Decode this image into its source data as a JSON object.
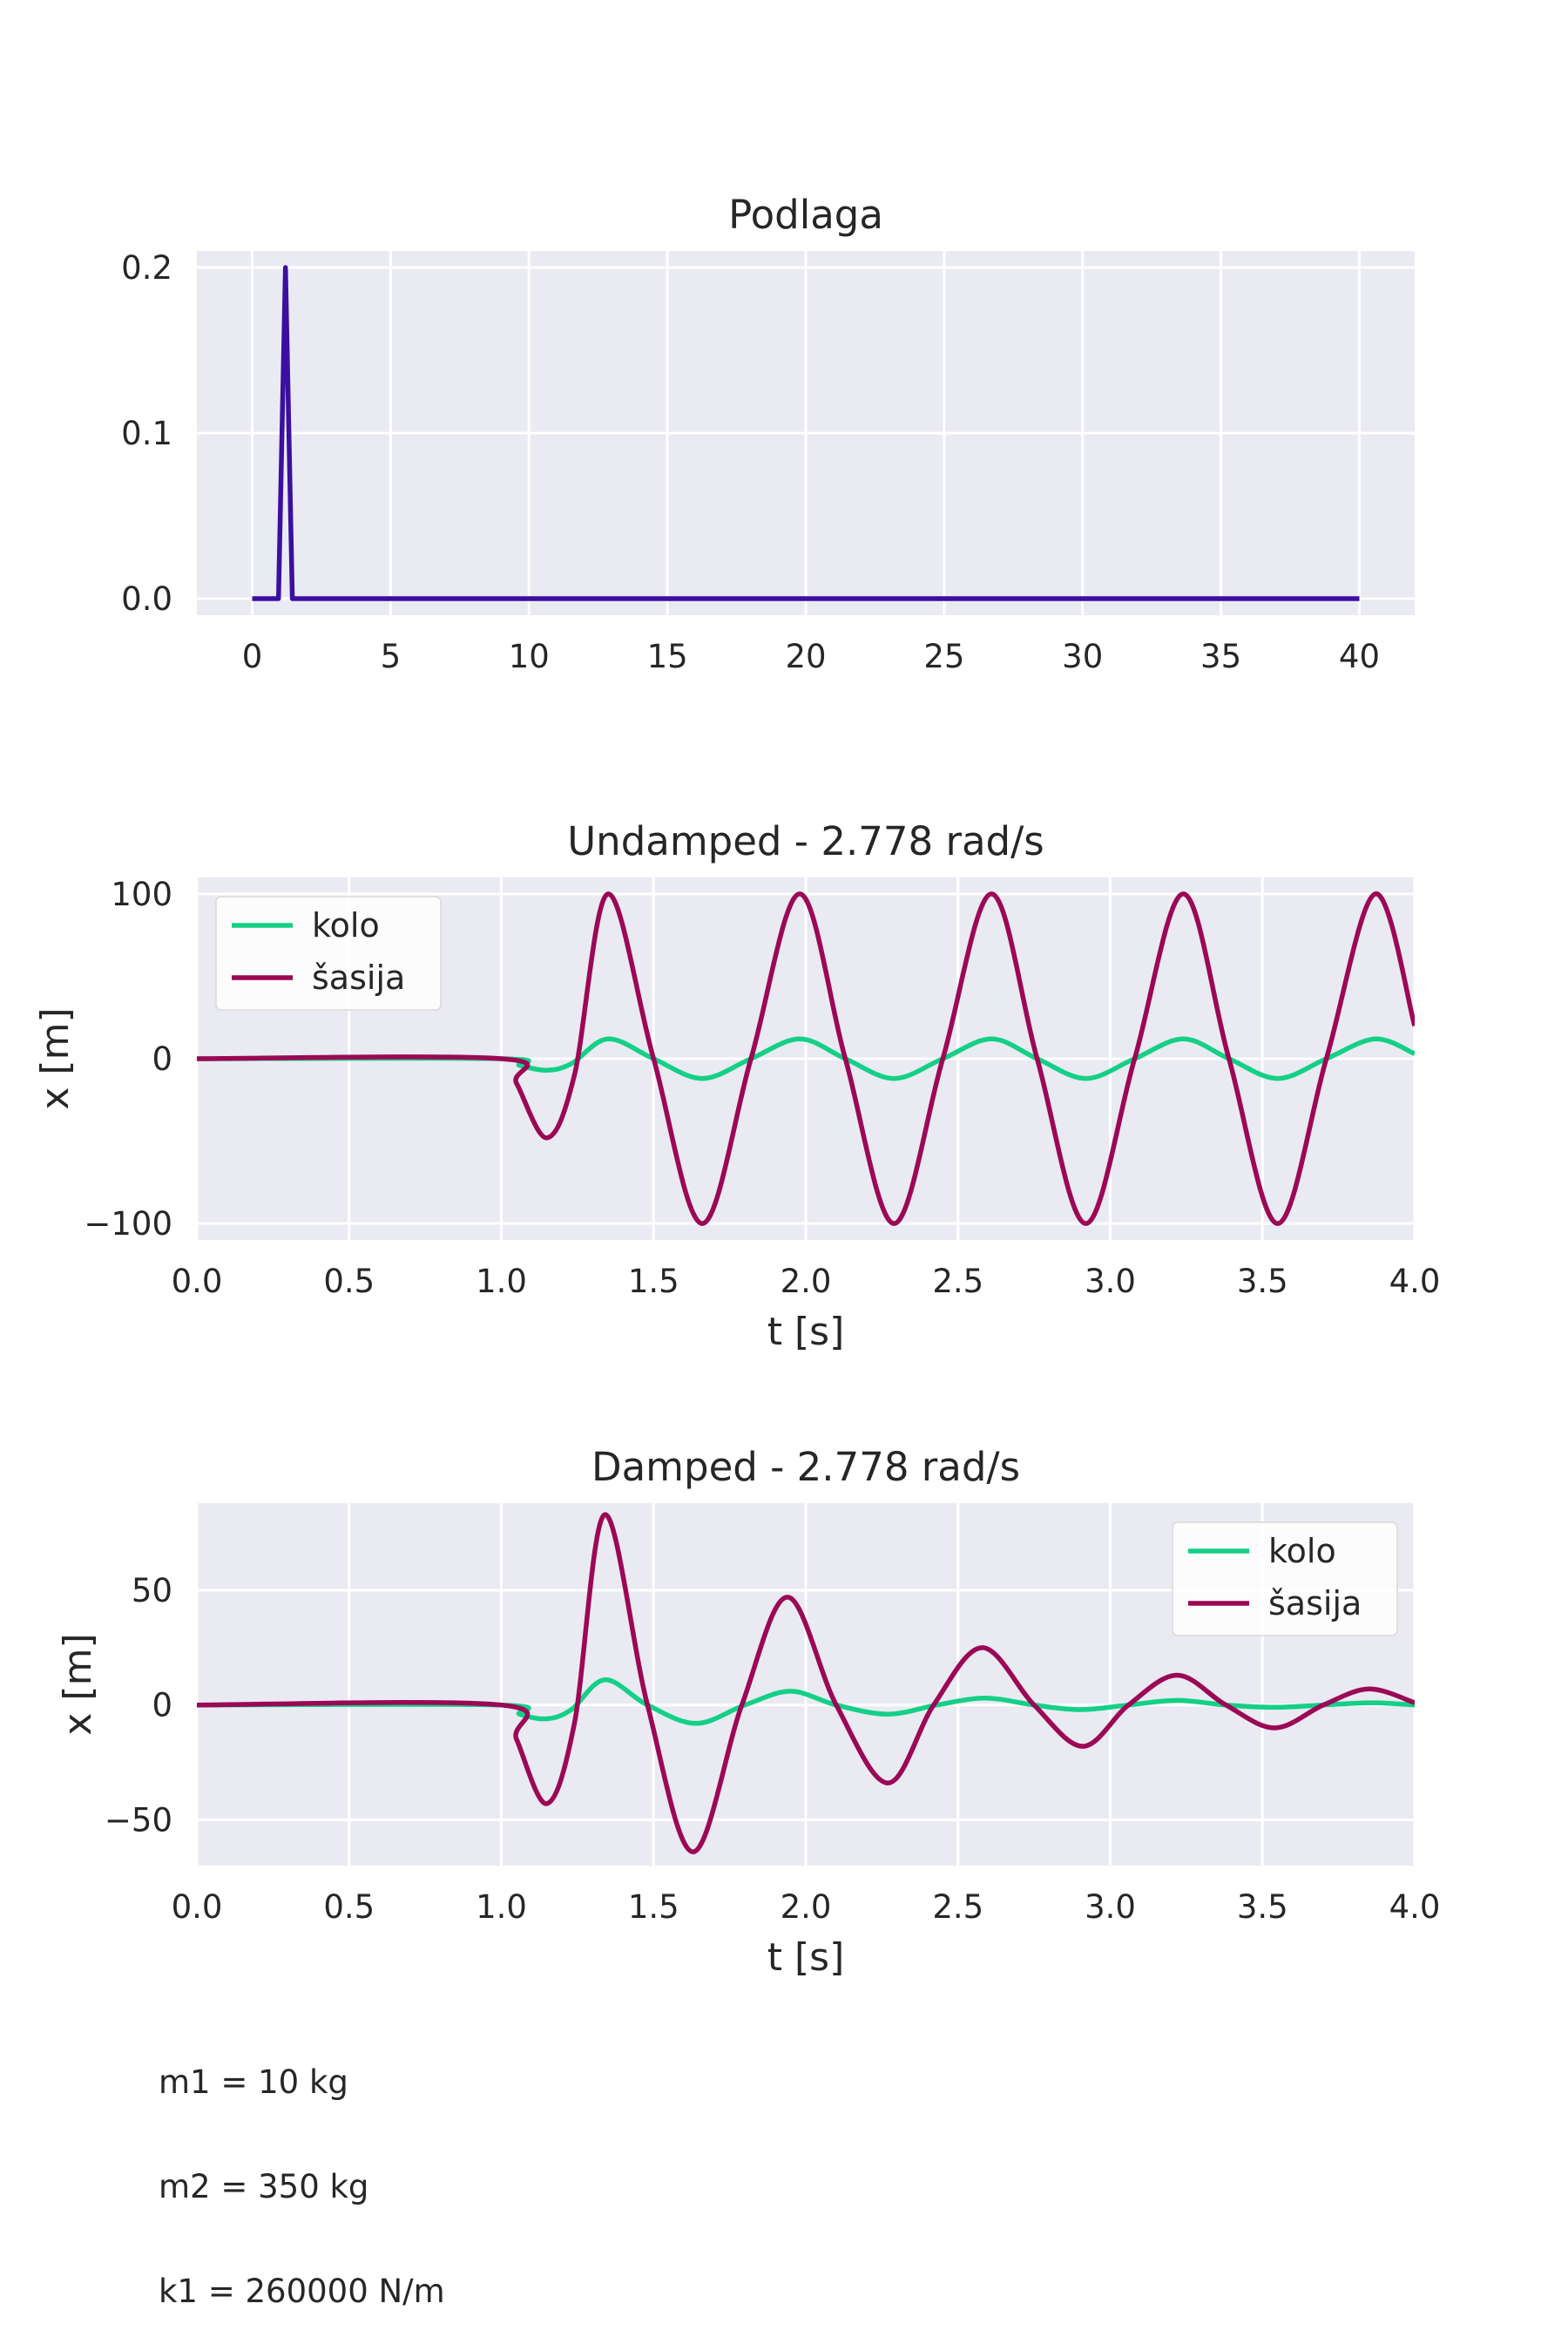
{
  "chart_data": [
    {
      "type": "line",
      "title": "Podlaga",
      "xlabel": "",
      "ylabel": "",
      "xlim": [
        -2,
        42
      ],
      "ylim": [
        -0.01,
        0.21
      ],
      "xticks": [
        0,
        5,
        10,
        15,
        20,
        25,
        30,
        35,
        40
      ],
      "xtick_labels": [
        "0",
        "5",
        "10",
        "15",
        "20",
        "25",
        "30",
        "35",
        "40"
      ],
      "yticks": [
        0.0,
        0.1,
        0.2
      ],
      "ytick_labels": [
        "0.0",
        "0.1",
        "0.2"
      ],
      "grid": true,
      "legend": null,
      "series": [
        {
          "color": "#3b0f9f",
          "x": [
            0,
            0.95,
            1.2,
            1.45,
            40
          ],
          "y": [
            0,
            0,
            0.2,
            0,
            0
          ]
        }
      ]
    },
    {
      "type": "line",
      "title": "Undamped - 2.778 rad/s",
      "xlabel": "t [s]",
      "ylabel": "x [m]",
      "xlim": [
        0,
        4
      ],
      "ylim": [
        -110,
        110
      ],
      "xticks": [
        0,
        0.5,
        1,
        1.5,
        2,
        2.5,
        3,
        3.5,
        4
      ],
      "xtick_labels": [
        "0.0",
        "0.5",
        "1.0",
        "1.5",
        "2.0",
        "2.5",
        "3.0",
        "3.5",
        "4.0"
      ],
      "yticks": [
        -100,
        0,
        100
      ],
      "ytick_labels": [
        "−100",
        "0",
        "100"
      ],
      "grid": true,
      "legend": "top-left",
      "series": [
        {
          "name": "kolo",
          "color": "#14d087",
          "x": [
            0,
            1.0,
            1.06,
            1.15,
            1.23,
            1.35,
            1.5,
            1.66,
            1.82,
            1.98,
            2.13,
            2.29,
            2.45,
            2.61,
            2.76,
            2.92,
            3.08,
            3.24,
            3.39,
            3.55,
            3.71,
            3.87,
            4.0
          ],
          "y": [
            0,
            0,
            -4,
            -7,
            -3,
            12,
            0,
            -12,
            0,
            12,
            0,
            -12,
            0,
            12,
            0,
            -12,
            0,
            12,
            0,
            -12,
            0,
            12,
            3
          ]
        },
        {
          "name": "šasija",
          "color": "#9b0855",
          "x": [
            0,
            1.0,
            1.05,
            1.15,
            1.24,
            1.35,
            1.5,
            1.66,
            1.82,
            1.98,
            2.13,
            2.29,
            2.45,
            2.61,
            2.76,
            2.92,
            3.08,
            3.24,
            3.39,
            3.55,
            3.71,
            3.87,
            4.0
          ],
          "y": [
            0,
            0,
            -15,
            -48,
            -10,
            100,
            0,
            -100,
            0,
            100,
            0,
            -100,
            0,
            100,
            0,
            -100,
            0,
            100,
            0,
            -100,
            0,
            100,
            20
          ]
        }
      ]
    },
    {
      "type": "line",
      "title": "Damped - 2.778 rad/s",
      "xlabel": "t [s]",
      "ylabel": "x [m]",
      "xlim": [
        0,
        4
      ],
      "ylim": [
        -70,
        88
      ],
      "xticks": [
        0,
        0.5,
        1,
        1.5,
        2,
        2.5,
        3,
        3.5,
        4
      ],
      "xtick_labels": [
        "0.0",
        "0.5",
        "1.0",
        "1.5",
        "2.0",
        "2.5",
        "3.0",
        "3.5",
        "4.0"
      ],
      "yticks": [
        -50,
        0,
        50
      ],
      "ytick_labels": [
        "−50",
        "0",
        "50"
      ],
      "grid": true,
      "legend": "top-right",
      "series": [
        {
          "name": "kolo",
          "color": "#14d087",
          "x": [
            0,
            1.0,
            1.06,
            1.15,
            1.23,
            1.34,
            1.48,
            1.64,
            1.8,
            1.95,
            2.1,
            2.27,
            2.43,
            2.59,
            2.75,
            2.9,
            3.06,
            3.22,
            3.38,
            3.54,
            3.7,
            3.86,
            4.0
          ],
          "y": [
            0,
            0,
            -4,
            -6,
            -2,
            11,
            0,
            -8,
            0,
            6,
            0,
            -4,
            0,
            3,
            0,
            -2,
            0,
            2,
            0,
            -1,
            0,
            1,
            0
          ]
        },
        {
          "name": "šasija",
          "color": "#9b0855",
          "x": [
            0,
            1.0,
            1.05,
            1.15,
            1.24,
            1.34,
            1.48,
            1.63,
            1.79,
            1.94,
            2.1,
            2.27,
            2.42,
            2.58,
            2.75,
            2.91,
            3.06,
            3.22,
            3.38,
            3.54,
            3.7,
            3.85,
            4.0
          ],
          "y": [
            0,
            0,
            -15,
            -43,
            -8,
            83,
            0,
            -64,
            0,
            47,
            0,
            -34,
            0,
            25,
            0,
            -18,
            0,
            13,
            0,
            -10,
            0,
            7,
            1
          ]
        }
      ]
    }
  ],
  "parameters": [
    "m1 = 10 kg",
    "m2 = 350 kg",
    "k1 = 260000 N/m"
  ]
}
